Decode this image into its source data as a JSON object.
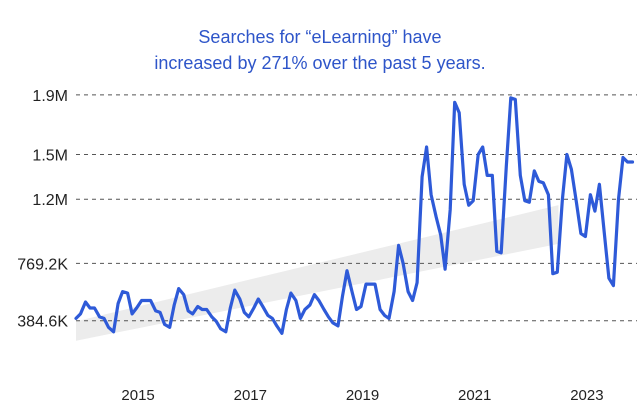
{
  "colors": {
    "title": "#2e55c9",
    "line": "#2e5ad8",
    "trend_band": "#ececec",
    "grid": "#555555"
  },
  "chart_data": {
    "type": "line",
    "title_lines": [
      "Searches for “eLearning” have",
      "increased by 271% over the past 5 years."
    ],
    "xlabel": "",
    "ylabel": "",
    "y_ticks": [
      {
        "value": 384600,
        "label": "384.6K"
      },
      {
        "value": 769200,
        "label": "769.2K"
      },
      {
        "value": 1200000,
        "label": "1.2M"
      },
      {
        "value": 1500000,
        "label": "1.5M"
      },
      {
        "value": 1900000,
        "label": "1.9M"
      }
    ],
    "x_ticks": [
      {
        "value": 2015,
        "label": "2015"
      },
      {
        "value": 2017,
        "label": "2017"
      },
      {
        "value": 2019,
        "label": "2019"
      },
      {
        "value": 2021,
        "label": "2021"
      },
      {
        "value": 2023,
        "label": "2023"
      }
    ],
    "xlim": [
      2014.0,
      2024.0
    ],
    "ylim": [
      0,
      2000000
    ],
    "grid": "horizontal dashed",
    "trend_band": {
      "x_start": 2014.0,
      "lower_start": 250000,
      "upper_start": 380000,
      "x_end": 2022.6,
      "lower_end": 900000,
      "upper_end": 1160000
    },
    "series": [
      {
        "x": [
          2014.0,
          2014.08,
          2014.17,
          2014.25,
          2014.33,
          2014.42,
          2014.5,
          2014.58,
          2014.67,
          2014.75,
          2014.83,
          2014.92,
          2015.0,
          2015.08,
          2015.17,
          2015.25,
          2015.33,
          2015.42,
          2015.5,
          2015.58,
          2015.67,
          2015.75,
          2015.83,
          2015.92,
          2016.0,
          2016.08,
          2016.17,
          2016.25,
          2016.33,
          2016.42,
          2016.5,
          2016.58,
          2016.67,
          2016.75,
          2016.83,
          2016.92,
          2017.0,
          2017.08,
          2017.17,
          2017.25,
          2017.33,
          2017.42,
          2017.5,
          2017.58,
          2017.67,
          2017.75,
          2017.83,
          2017.92,
          2018.0,
          2018.08,
          2018.17,
          2018.25,
          2018.33,
          2018.42,
          2018.5,
          2018.58,
          2018.67,
          2018.75,
          2018.83,
          2018.92,
          2019.0,
          2019.08,
          2019.17,
          2019.25,
          2019.33,
          2019.42,
          2019.5,
          2019.58,
          2019.67,
          2019.75,
          2019.83,
          2019.92,
          2020.0,
          2020.08,
          2020.17,
          2020.25,
          2020.33,
          2020.42,
          2020.5,
          2020.58,
          2020.67,
          2020.75,
          2020.83,
          2020.92,
          2021.0,
          2021.08,
          2021.17,
          2021.25,
          2021.33,
          2021.42,
          2021.5,
          2021.58,
          2021.67,
          2021.75,
          2021.83,
          2021.92,
          2022.0,
          2022.08,
          2022.17,
          2022.25,
          2022.33,
          2022.42,
          2022.5,
          2022.58,
          2022.67,
          2022.75,
          2022.83,
          2022.92,
          2023.0,
          2023.08,
          2023.17,
          2023.25,
          2023.33,
          2023.42,
          2023.5,
          2023.58,
          2023.67,
          2023.75,
          2023.83,
          2023.92
        ],
        "y": [
          400000,
          430000,
          510000,
          470000,
          470000,
          410000,
          400000,
          340000,
          310000,
          500000,
          580000,
          570000,
          430000,
          470000,
          520000,
          520000,
          520000,
          450000,
          440000,
          360000,
          340000,
          490000,
          600000,
          560000,
          450000,
          430000,
          480000,
          460000,
          460000,
          410000,
          380000,
          330000,
          310000,
          470000,
          590000,
          530000,
          440000,
          410000,
          470000,
          530000,
          480000,
          420000,
          400000,
          350000,
          300000,
          460000,
          570000,
          520000,
          400000,
          460000,
          490000,
          560000,
          520000,
          460000,
          410000,
          370000,
          350000,
          550000,
          720000,
          580000,
          460000,
          480000,
          630000,
          630000,
          630000,
          460000,
          420000,
          400000,
          580000,
          890000,
          770000,
          580000,
          520000,
          640000,
          1350000,
          1550000,
          1230000,
          1080000,
          960000,
          730000,
          1130000,
          1850000,
          1780000,
          1300000,
          1160000,
          1190000,
          1500000,
          1550000,
          1360000,
          1360000,
          850000,
          840000,
          1420000,
          1880000,
          1870000,
          1360000,
          1190000,
          1180000,
          1390000,
          1320000,
          1310000,
          1230000,
          700000,
          710000,
          1200000,
          1500000,
          1400000,
          1180000,
          970000,
          950000,
          1230000,
          1120000,
          1300000,
          960000,
          670000,
          620000,
          1200000,
          1480000,
          1450000,
          1450000
        ]
      }
    ]
  }
}
